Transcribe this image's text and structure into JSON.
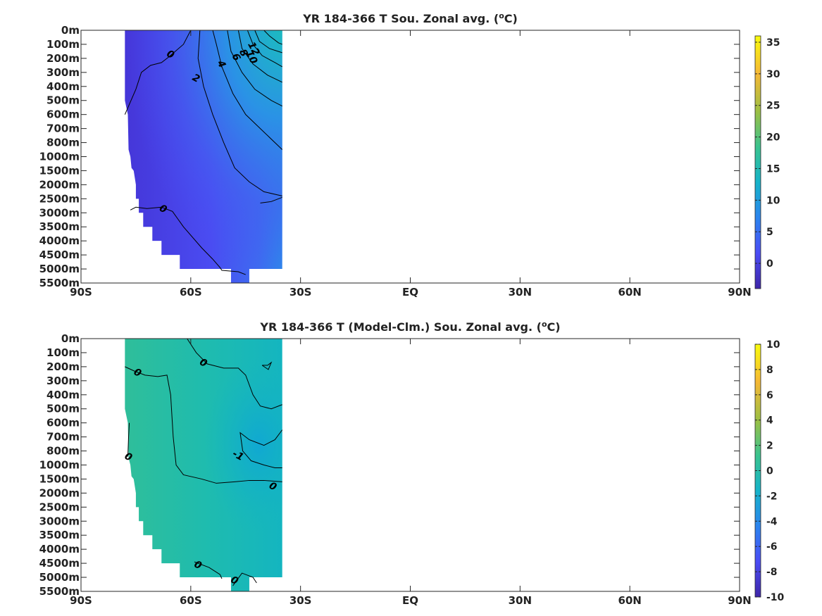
{
  "chart_data": [
    {
      "type": "heatmap",
      "title_main": "YR 184-366 T Sou. Zonal avg. (",
      "title_sup": "o",
      "title_tail": "C)",
      "x_tick_labels": [
        "90S",
        "60S",
        "30S",
        "EQ",
        "30N",
        "60N",
        "90N"
      ],
      "x_ticks_deg": [
        -90,
        -60,
        -30,
        0,
        30,
        60,
        90
      ],
      "y_tick_labels": [
        "0m",
        "100m",
        "200m",
        "300m",
        "400m",
        "500m",
        "600m",
        "700m",
        "800m",
        "1000m",
        "1500m",
        "2000m",
        "2500m",
        "3000m",
        "3500m",
        "4000m",
        "4500m",
        "5000m",
        "5500m"
      ],
      "colorbar": {
        "range": [
          -4,
          36
        ],
        "tick_values": [
          0,
          5,
          10,
          15,
          20,
          25,
          30,
          35
        ],
        "tick_labels": [
          "0",
          "5",
          "10",
          "15",
          "20",
          "25",
          "30",
          "35"
        ]
      },
      "data_extent_lat": [
        -78,
        -35
      ],
      "contour_labels": [
        {
          "text": "0",
          "lat": -65.5,
          "depth_index": 1.7
        },
        {
          "text": "2",
          "lat": -58.5,
          "depth_index": 3.4
        },
        {
          "text": "4",
          "lat": -51.5,
          "depth_index": 2.4
        },
        {
          "text": "6",
          "lat": -47.5,
          "depth_index": 1.9
        },
        {
          "text": "8",
          "lat": -45.5,
          "depth_index": 1.6
        },
        {
          "text": "10",
          "lat": -43.3,
          "depth_index": 1.9
        },
        {
          "text": "12",
          "lat": -42.7,
          "depth_index": 1.3
        },
        {
          "text": "0",
          "lat": -67.5,
          "depth_index": 12.7
        }
      ],
      "colors": [
        "#3e26a8",
        "#4a4cf5",
        "#2c84ee",
        "#16b3c9",
        "#3ac38f",
        "#9cbf44",
        "#f5b836",
        "#f9fb0e"
      ]
    },
    {
      "type": "heatmap",
      "title_main": "YR 184-366 T (Model-Clm.) Sou. Zonal avg. (",
      "title_sup": "o",
      "title_tail": "C)",
      "x_tick_labels": [
        "90S",
        "60S",
        "30S",
        "EQ",
        "30N",
        "60N",
        "90N"
      ],
      "x_ticks_deg": [
        -90,
        -60,
        -30,
        0,
        30,
        60,
        90
      ],
      "y_tick_labels": [
        "0m",
        "100m",
        "200m",
        "300m",
        "400m",
        "500m",
        "600m",
        "700m",
        "800m",
        "1000m",
        "1500m",
        "2000m",
        "2500m",
        "3000m",
        "3500m",
        "4000m",
        "4500m",
        "5000m",
        "5500m"
      ],
      "colorbar": {
        "range": [
          -10,
          10
        ],
        "tick_values": [
          -10,
          -8,
          -6,
          -4,
          -2,
          0,
          2,
          4,
          6,
          8,
          10
        ],
        "tick_labels": [
          "-10",
          "-8",
          "-6",
          "-4",
          "-2",
          "0",
          "2",
          "4",
          "6",
          "8",
          "10"
        ]
      },
      "data_extent_lat": [
        -78,
        -35
      ],
      "contour_labels": [
        {
          "text": "0",
          "lat": -56.5,
          "depth_index": 1.7
        },
        {
          "text": "0",
          "lat": -74.5,
          "depth_index": 2.4
        },
        {
          "text": "0",
          "lat": -77,
          "depth_index": 8.4
        },
        {
          "text": "-1",
          "lat": -47,
          "depth_index": 8.3
        },
        {
          "text": "0",
          "lat": -37.5,
          "depth_index": 10.5
        },
        {
          "text": "0",
          "lat": -58,
          "depth_index": 16.1
        },
        {
          "text": "0",
          "lat": -48,
          "depth_index": 17.2
        }
      ],
      "colors": [
        "#3e26a8",
        "#4a4cf5",
        "#2c84ee",
        "#16b3c9",
        "#3ac38f",
        "#9cbf44",
        "#f5b836",
        "#f9fb0e"
      ]
    }
  ]
}
